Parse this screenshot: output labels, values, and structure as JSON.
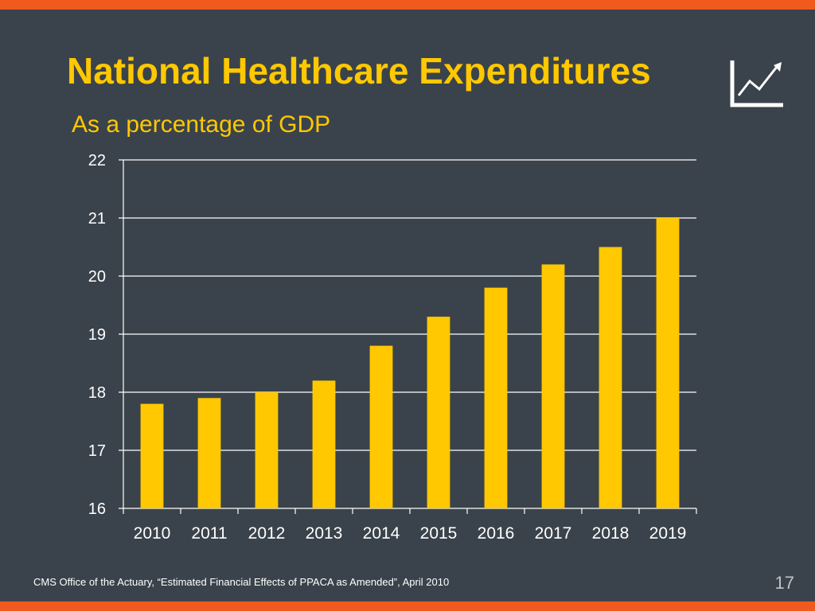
{
  "colors": {
    "background": "#3a434b",
    "accent_stripe": "#f05a1e",
    "title": "#ffc800",
    "bar": "#ffc800",
    "grid": "#ffffff"
  },
  "slide": {
    "title": "National Healthcare Expenditures",
    "subtitle": "As a percentage of GDP",
    "icon": "trend-up-chart-icon",
    "source": "CMS Office of the Actuary, “Estimated Financial Effects of PPACA as Amended”, April 2010",
    "page_number": "17"
  },
  "chart_data": {
    "type": "bar",
    "categories": [
      "2010",
      "2011",
      "2012",
      "2013",
      "2014",
      "2015",
      "2016",
      "2017",
      "2018",
      "2019"
    ],
    "values": [
      17.8,
      17.9,
      18.0,
      18.2,
      18.8,
      19.3,
      19.8,
      20.2,
      20.5,
      21.0
    ],
    "ylim": [
      16,
      22
    ],
    "yticks": [
      "16",
      "17",
      "18",
      "19",
      "20",
      "21",
      "22"
    ],
    "grid": true,
    "legend": "none"
  }
}
